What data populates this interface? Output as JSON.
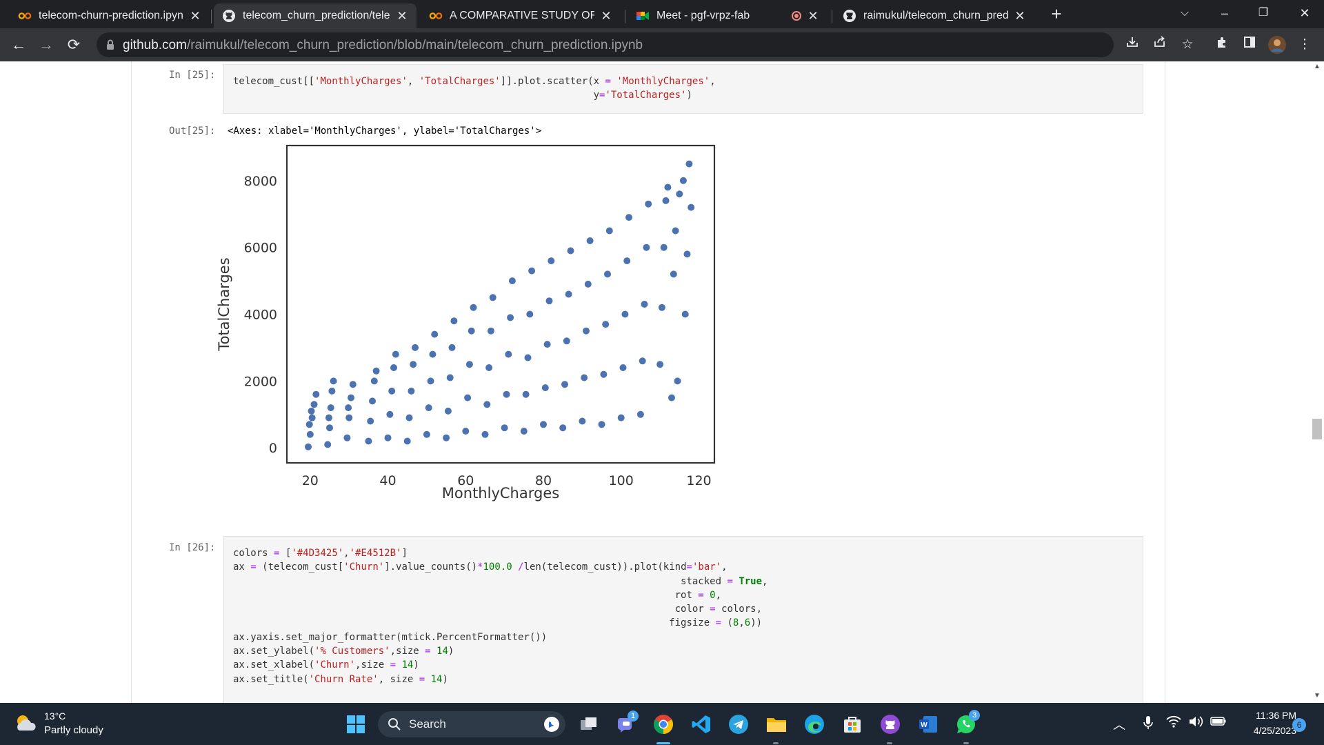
{
  "browser": {
    "tabs": [
      {
        "title": "telecom-churn-prediction.ipynb",
        "favicon": "colab-icon",
        "active": false
      },
      {
        "title": "telecom_churn_prediction/teleco",
        "favicon": "github-icon",
        "active": true
      },
      {
        "title": "A COMPARATIVE STUDY OF MUL",
        "favicon": "colab-icon",
        "active": false
      },
      {
        "title": "Meet - pgf-vrpz-fab",
        "favicon": "meet-icon",
        "active": false
      },
      {
        "title": "raimukul/telecom_churn_predicti",
        "favicon": "github-icon",
        "active": false
      }
    ],
    "url_host": "github.com",
    "url_path": "/raimukul/telecom_churn_prediction/blob/main/telecom_churn_prediction.ipynb"
  },
  "notebook": {
    "cell25": {
      "in_prompt": "In [25]:",
      "out_prompt": "Out[25]:",
      "output_text": "<Axes: xlabel='MonthlyCharges', ylabel='TotalCharges'>"
    },
    "cell26": {
      "in_prompt": "In [26]:"
    }
  },
  "chart_data": {
    "type": "scatter",
    "title": "",
    "xlabel": "MonthlyCharges",
    "ylabel": "TotalCharges",
    "xlim": [
      14,
      124
    ],
    "ylim": [
      -450,
      9050
    ],
    "xticks": [
      20,
      40,
      60,
      80,
      100,
      120
    ],
    "yticks": [
      0,
      2000,
      4000,
      6000,
      8000
    ],
    "grid": false,
    "marker_color": "#4c72b0",
    "points": [
      [
        19.5,
        30
      ],
      [
        20.0,
        400
      ],
      [
        20.5,
        900
      ],
      [
        21.0,
        1300
      ],
      [
        21.5,
        1600
      ],
      [
        19.8,
        700
      ],
      [
        20.3,
        1100
      ],
      [
        24.5,
        100
      ],
      [
        25.0,
        600
      ],
      [
        25.3,
        1200
      ],
      [
        25.6,
        1700
      ],
      [
        26.0,
        2000
      ],
      [
        24.8,
        900
      ],
      [
        29.5,
        300
      ],
      [
        30.0,
        900
      ],
      [
        30.5,
        1500
      ],
      [
        31.0,
        1900
      ],
      [
        29.8,
        1200
      ],
      [
        35.0,
        200
      ],
      [
        35.5,
        800
      ],
      [
        36.0,
        1400
      ],
      [
        36.5,
        2000
      ],
      [
        37.0,
        2300
      ],
      [
        40.0,
        300
      ],
      [
        40.5,
        1000
      ],
      [
        41.0,
        1700
      ],
      [
        41.5,
        2400
      ],
      [
        42.0,
        2800
      ],
      [
        45.0,
        200
      ],
      [
        45.5,
        900
      ],
      [
        46.0,
        1700
      ],
      [
        46.5,
        2500
      ],
      [
        47.0,
        3000
      ],
      [
        50.0,
        400
      ],
      [
        50.5,
        1200
      ],
      [
        51.0,
        2000
      ],
      [
        51.5,
        2800
      ],
      [
        52.0,
        3400
      ],
      [
        55.0,
        300
      ],
      [
        55.5,
        1100
      ],
      [
        56.0,
        2100
      ],
      [
        56.5,
        3000
      ],
      [
        57.0,
        3800
      ],
      [
        60.0,
        500
      ],
      [
        60.5,
        1500
      ],
      [
        61.0,
        2500
      ],
      [
        61.5,
        3500
      ],
      [
        62.0,
        4200
      ],
      [
        65.0,
        400
      ],
      [
        65.5,
        1300
      ],
      [
        66.0,
        2400
      ],
      [
        66.5,
        3500
      ],
      [
        67.0,
        4500
      ],
      [
        70.0,
        600
      ],
      [
        70.5,
        1600
      ],
      [
        71.0,
        2800
      ],
      [
        71.5,
        3900
      ],
      [
        72.0,
        5000
      ],
      [
        75.0,
        500
      ],
      [
        75.5,
        1600
      ],
      [
        76.0,
        2700
      ],
      [
        76.5,
        4000
      ],
      [
        77.0,
        5300
      ],
      [
        80.0,
        700
      ],
      [
        80.5,
        1800
      ],
      [
        81.0,
        3100
      ],
      [
        81.5,
        4400
      ],
      [
        82.0,
        5600
      ],
      [
        85.0,
        600
      ],
      [
        85.5,
        1900
      ],
      [
        86.0,
        3200
      ],
      [
        86.5,
        4600
      ],
      [
        87.0,
        5900
      ],
      [
        90.0,
        800
      ],
      [
        90.5,
        2100
      ],
      [
        91.0,
        3500
      ],
      [
        91.5,
        4900
      ],
      [
        92.0,
        6200
      ],
      [
        95.0,
        700
      ],
      [
        95.5,
        2200
      ],
      [
        96.0,
        3700
      ],
      [
        96.5,
        5200
      ],
      [
        97.0,
        6500
      ],
      [
        100.0,
        900
      ],
      [
        100.5,
        2400
      ],
      [
        101.0,
        4000
      ],
      [
        101.5,
        5600
      ],
      [
        102.0,
        6900
      ],
      [
        105.0,
        1000
      ],
      [
        105.5,
        2600
      ],
      [
        106.0,
        4300
      ],
      [
        106.5,
        6000
      ],
      [
        107.0,
        7300
      ],
      [
        110.0,
        2500
      ],
      [
        110.5,
        4200
      ],
      [
        111.0,
        6000
      ],
      [
        111.5,
        7400
      ],
      [
        112.0,
        7800
      ],
      [
        113.5,
        5200
      ],
      [
        114.0,
        6500
      ],
      [
        115.0,
        7600
      ],
      [
        116.0,
        8000
      ],
      [
        117.5,
        8500
      ],
      [
        117.0,
        5800
      ],
      [
        118.0,
        7200
      ],
      [
        116.5,
        4000
      ],
      [
        114.5,
        2000
      ],
      [
        113.0,
        1500
      ]
    ]
  },
  "taskbar": {
    "weather_temp": "13°C",
    "weather_desc": "Partly cloudy",
    "search_label": "Search",
    "teams_badge": "1",
    "whatsapp_badge": "3",
    "time": "11:36 PM",
    "date": "4/25/2023",
    "notification_count": "6"
  }
}
